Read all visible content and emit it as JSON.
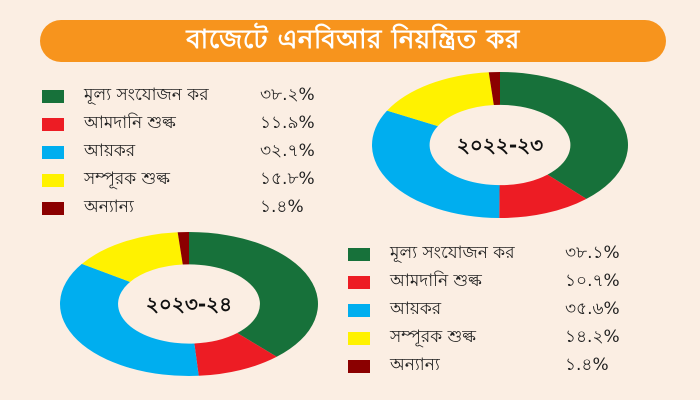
{
  "header": {
    "title": "বাজেটে এনবিআর নিয়ন্ত্রিত কর"
  },
  "chart_data": [
    {
      "type": "pie",
      "title": "২০২২-২৩",
      "categories": [
        "মূল্য সংযোজন কর",
        "আমদানি শুল্ক",
        "আয়কর",
        "সম্পূরক শুল্ক",
        "অন্যান্য"
      ],
      "values": [
        38.2,
        11.9,
        32.7,
        15.8,
        1.4
      ],
      "value_labels": [
        "৩৮.২%",
        "১১.৯%",
        "৩২.৭%",
        "১৫.৮%",
        "১.৪%"
      ],
      "colors": [
        "#17713a",
        "#ed1c24",
        "#00aeef",
        "#fff200",
        "#8b0000"
      ],
      "style": "donut"
    },
    {
      "type": "pie",
      "title": "২০২৩-২৪",
      "categories": [
        "মূল্য সংযোজন কর",
        "আমদানি শুল্ক",
        "আয়কর",
        "সম্পূরক শুল্ক",
        "অন্যান্য"
      ],
      "values": [
        38.1,
        10.7,
        35.6,
        14.2,
        1.4
      ],
      "value_labels": [
        "৩৮.১%",
        "১০.৭%",
        "৩৫.৬%",
        "১৪.২%",
        "১.৪%"
      ],
      "colors": [
        "#17713a",
        "#ed1c24",
        "#00aeef",
        "#fff200",
        "#8b0000"
      ],
      "style": "donut"
    }
  ]
}
